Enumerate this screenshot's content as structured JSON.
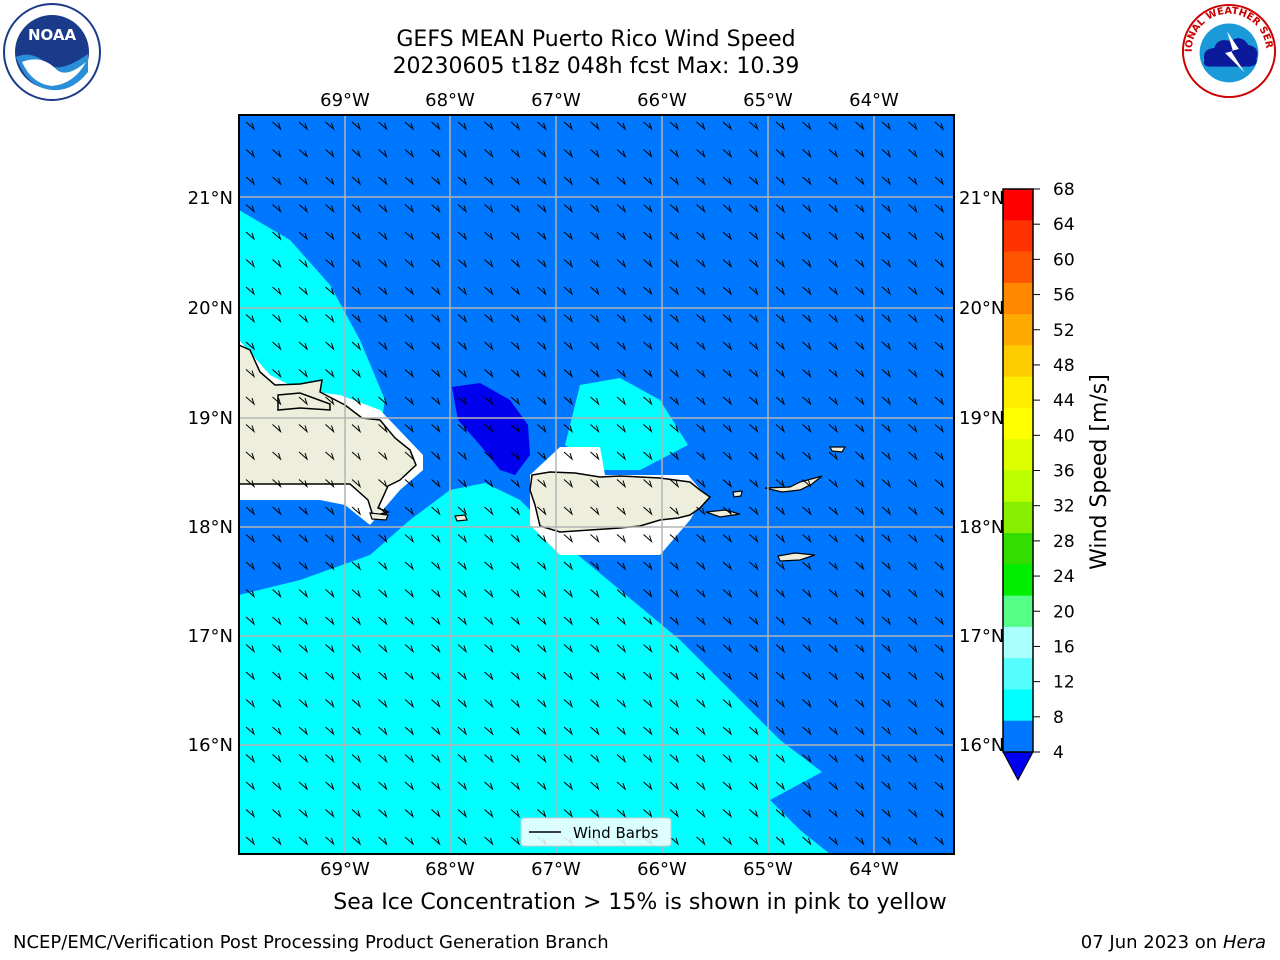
{
  "header": {
    "title_line1": "GEFS MEAN Puerto Rico Wind Speed",
    "title_line2": "20230605 t18z 048h fcst   Max: 10.39"
  },
  "logos": {
    "left": {
      "icon": "noaa-logo",
      "text": "NOAA"
    },
    "right": {
      "icon": "nws-logo",
      "text": "NATIONAL WEATHER SERVICE"
    }
  },
  "map": {
    "lon_labels": [
      "69°W",
      "68°W",
      "67°W",
      "66°W",
      "65°W",
      "64°W"
    ],
    "lat_labels": [
      "21°N",
      "20°N",
      "19°N",
      "18°N",
      "17°N",
      "16°N"
    ],
    "legend_label": "Wind Barbs",
    "colors": {
      "ocean_dark": "#0077ff",
      "ocean_light": "#00ffff",
      "calm": "#0000ee",
      "land": "#eeeedc",
      "grid": "#b4b4b4"
    }
  },
  "colorbar": {
    "label": "Wind Speed [m/s]",
    "ticks": [
      "68",
      "64",
      "60",
      "56",
      "52",
      "48",
      "44",
      "40",
      "36",
      "32",
      "28",
      "24",
      "20",
      "16",
      "12",
      "8",
      "4"
    ],
    "colors": [
      "#ff0000",
      "#ff3300",
      "#ff5500",
      "#ff8800",
      "#ffaa00",
      "#ffcc00",
      "#ffee00",
      "#ffff00",
      "#ddff00",
      "#bbff00",
      "#88ee00",
      "#33dd00",
      "#00ee00",
      "#55ff88",
      "#aaffff",
      "#55ffff",
      "#00ffff",
      "#0077ff"
    ],
    "under_color": "#0000ee"
  },
  "caption": "Sea Ice Concentration > 15% is shown in pink to yellow",
  "footer": {
    "left": "NCEP/EMC/Verification Post Processing Product Generation Branch",
    "right_date": "07 Jun 2023 on",
    "right_host": "Hera"
  }
}
